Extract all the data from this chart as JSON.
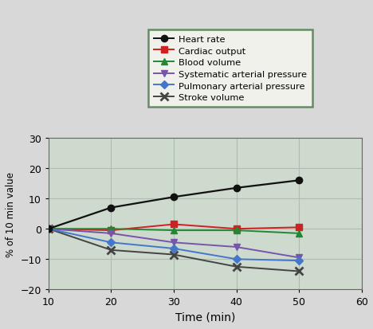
{
  "x": [
    10,
    20,
    30,
    40,
    50
  ],
  "series": {
    "Heart rate": {
      "y": [
        0,
        7,
        10.5,
        13.5,
        16
      ],
      "color": "#111111",
      "marker": "o",
      "markersize": 6,
      "linewidth": 1.6,
      "zorder": 5
    },
    "Cardiac output": {
      "y": [
        0,
        -0.5,
        1.5,
        0,
        0.5
      ],
      "color": "#cc2222",
      "marker": "s",
      "markersize": 6,
      "linewidth": 1.4,
      "zorder": 4
    },
    "Blood volume": {
      "y": [
        0,
        0,
        -0.5,
        -0.5,
        -1.5
      ],
      "color": "#228833",
      "marker": "^",
      "markersize": 6,
      "linewidth": 1.4,
      "zorder": 4
    },
    "Systematic arterial pressure": {
      "y": [
        0,
        -1.5,
        -4.5,
        -6,
        -9.5
      ],
      "color": "#7755aa",
      "marker": "v",
      "markersize": 6,
      "linewidth": 1.4,
      "zorder": 4
    },
    "Pulmonary arterial pressure": {
      "y": [
        0,
        -4.5,
        -6.5,
        -10,
        -10.5
      ],
      "color": "#4477cc",
      "marker": "D",
      "markersize": 5,
      "linewidth": 1.4,
      "zorder": 4
    },
    "Stroke volume": {
      "y": [
        0,
        -7,
        -8.5,
        -12.5,
        -14
      ],
      "color": "#444444",
      "marker": "x",
      "markersize": 7,
      "markeredgewidth": 2.0,
      "linewidth": 1.4,
      "zorder": 3
    }
  },
  "xlim": [
    10,
    60
  ],
  "ylim": [
    -20,
    30
  ],
  "xticks": [
    10,
    20,
    30,
    40,
    50,
    60
  ],
  "yticks": [
    -20,
    -10,
    0,
    10,
    20,
    30
  ],
  "xlabel": "Time (min)",
  "ylabel": "% of 10 min value",
  "grid_color": "#aabfaa",
  "plot_bg": "#cddacd",
  "legend_bg": "#f8f8f0",
  "legend_border": "#447744",
  "fig_bg": "#d8d8d8"
}
